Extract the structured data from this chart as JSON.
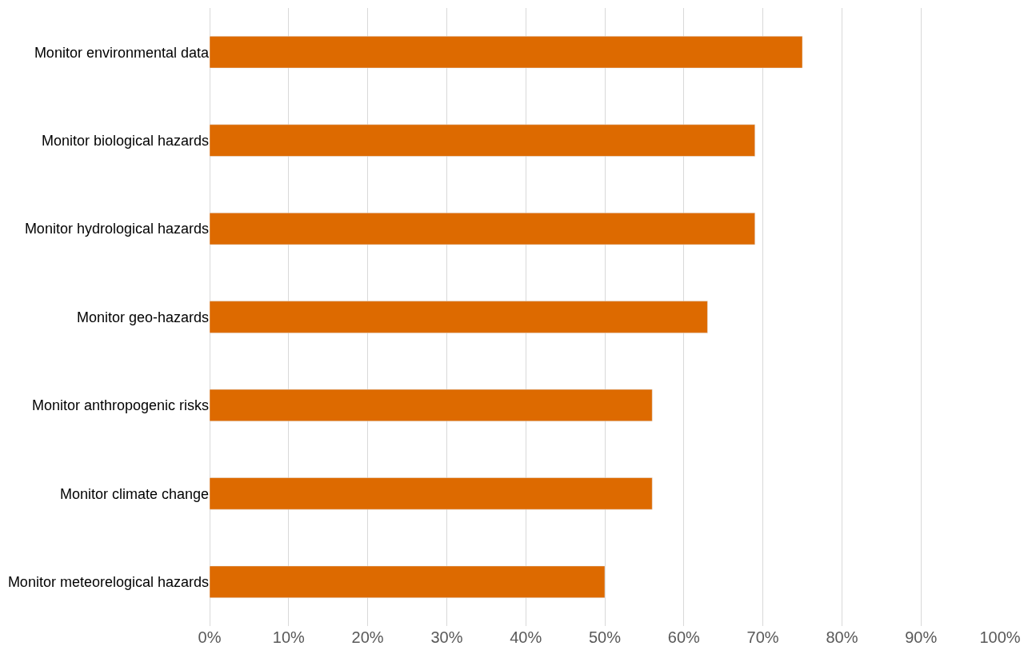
{
  "chart_data": {
    "type": "bar",
    "orientation": "horizontal",
    "categories": [
      "Monitor environmental data",
      "Monitor biological hazards",
      "Monitor hydrological hazards",
      "Monitor geo-hazards",
      "Monitor anthropogenic risks",
      "Monitor climate change",
      "Monitor meteorelogical hazards"
    ],
    "values": [
      75,
      69,
      69,
      63,
      56,
      56,
      50
    ],
    "color": "#dd6a00",
    "xlim": [
      0,
      100
    ],
    "xticks": [
      {
        "value": 0,
        "label": "0%"
      },
      {
        "value": 10,
        "label": "10%"
      },
      {
        "value": 20,
        "label": "20%"
      },
      {
        "value": 30,
        "label": "30%"
      },
      {
        "value": 40,
        "label": "40%"
      },
      {
        "value": 50,
        "label": "50%"
      },
      {
        "value": 60,
        "label": "60%"
      },
      {
        "value": 70,
        "label": "70%"
      },
      {
        "value": 80,
        "label": "80%"
      },
      {
        "value": 90,
        "label": "90%"
      },
      {
        "value": 100,
        "label": "100%"
      }
    ],
    "grid": "x"
  }
}
